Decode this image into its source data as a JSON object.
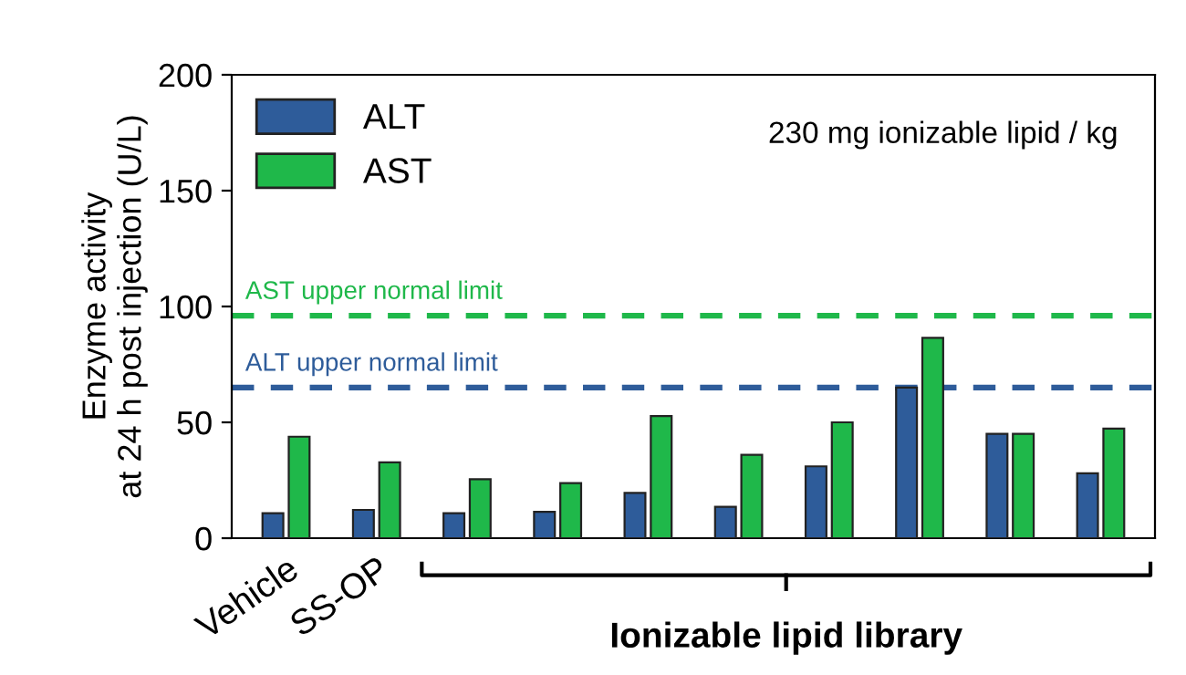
{
  "chart_data": {
    "type": "bar",
    "ylabel": "Enzyme activity\nat 24 h post injection (U/L)",
    "categories": [
      "Vehicle",
      "SS-OP",
      null,
      null,
      null,
      null,
      null,
      null,
      null,
      null
    ],
    "series": [
      {
        "name": "ALT",
        "color": "#2e5c9a",
        "values": [
          10.8,
          12.2,
          10.8,
          11.4,
          19.5,
          13.5,
          31,
          65,
          45,
          28
        ]
      },
      {
        "name": "AST",
        "color": "#1fb84a",
        "values": [
          43.8,
          32.7,
          25.4,
          23.8,
          52.7,
          36,
          50,
          86.5,
          45,
          47.3
        ]
      }
    ],
    "ylim": [
      0,
      200
    ],
    "yticks": [
      0,
      50,
      100,
      150,
      200
    ],
    "ref_lines": [
      {
        "axis": "y",
        "value": 96,
        "label": "AST upper normal limit",
        "color": "#1fb84a",
        "line_style": "dashed"
      },
      {
        "axis": "y",
        "value": 65,
        "label": "ALT upper normal limit",
        "color": "#2e5c9a",
        "line_style": "dashed"
      }
    ],
    "annotations": [
      "230 mg ionizable lipid / kg",
      "Ionizable lipid library"
    ],
    "legend": "top left",
    "grid": false
  }
}
